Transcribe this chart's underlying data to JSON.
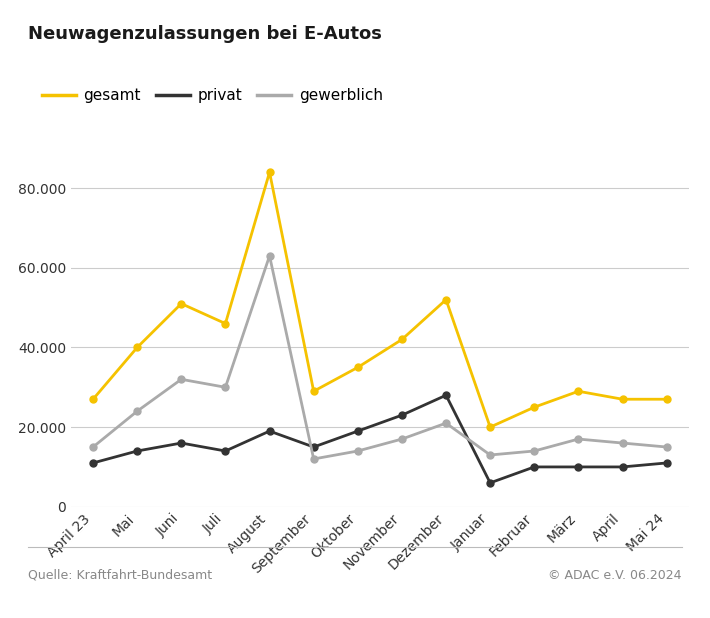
{
  "title": "Neuwagenzulassungen bei E-Autos",
  "categories": [
    "April 23",
    "Mai",
    "Juni",
    "Juli",
    "August",
    "September",
    "Oktober",
    "November",
    "Dezember",
    "Januar",
    "Februar",
    "März",
    "April",
    "Mai 24"
  ],
  "gesamt": [
    27000,
    40000,
    51000,
    46000,
    84000,
    29000,
    35000,
    42000,
    52000,
    20000,
    25000,
    29000,
    27000,
    27000
  ],
  "privat": [
    11000,
    14000,
    16000,
    14000,
    19000,
    15000,
    19000,
    23000,
    28000,
    6000,
    10000,
    10000,
    10000,
    11000
  ],
  "gewerblich": [
    15000,
    24000,
    32000,
    30000,
    63000,
    12000,
    14000,
    17000,
    21000,
    13000,
    14000,
    17000,
    16000,
    15000
  ],
  "color_gesamt": "#F5C200",
  "color_privat": "#333333",
  "color_gewerblich": "#aaaaaa",
  "ylim": [
    0,
    90000
  ],
  "yticks": [
    0,
    20000,
    40000,
    60000,
    80000
  ],
  "source_left": "Quelle: Kraftfahrt-Bundesamt",
  "source_right": "© ADAC e.V. 06.2024",
  "background_color": "#ffffff",
  "grid_color": "#cccccc",
  "linewidth": 2.0,
  "markersize": 5,
  "title_fontsize": 13,
  "tick_fontsize": 10,
  "legend_fontsize": 11,
  "footer_fontsize": 9
}
